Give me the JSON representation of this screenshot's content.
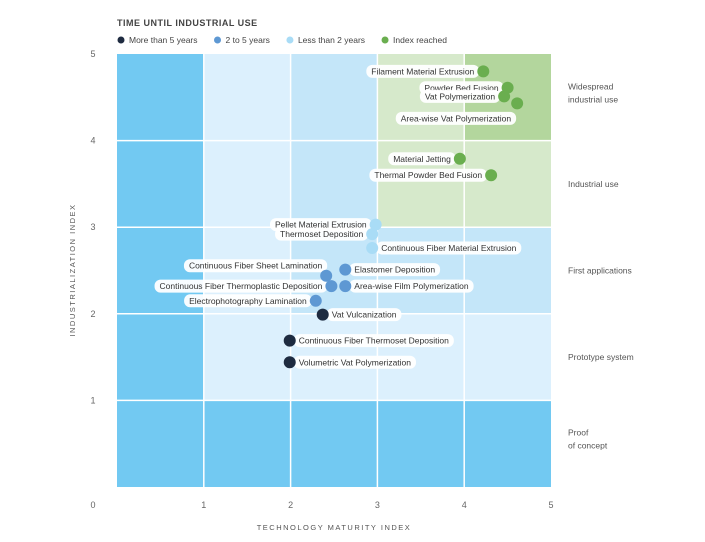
{
  "chart_data": {
    "type": "scatter",
    "title": "TIME UNTIL INDUSTRIAL USE",
    "xlabel": "TECHNOLOGY MATURITY INDEX",
    "ylabel": "INDUSTRIALIZATION INDEX",
    "xlim": [
      0,
      5
    ],
    "ylim": [
      0,
      5
    ],
    "xticks": [
      "0",
      "1",
      "2",
      "3",
      "4",
      "5"
    ],
    "yticks": [
      "0",
      "1",
      "2",
      "3",
      "4",
      "5"
    ],
    "grid": true,
    "legend_placement": "top-left",
    "legend": [
      {
        "key": "gt5",
        "name": "More than 5 years",
        "color": "#1e2b40"
      },
      {
        "key": "2to5",
        "name": "2 to 5 years",
        "color": "#5e98d3"
      },
      {
        "key": "lt2",
        "name": "Less than 2 years",
        "color": "#a9dcf6"
      },
      {
        "key": "reached",
        "name": "Index reached",
        "color": "#6aae4f"
      }
    ],
    "zone_colors": [
      "#72c9f2",
      "#dcf0fd",
      "#c4e6f9",
      "#d6e9cb",
      "#b3d69d"
    ],
    "y_categories": [
      "Proof of concept",
      "Prototype system",
      "First applications",
      "Industrial use",
      "Widespread industrial use"
    ],
    "points": [
      {
        "name": "Filament Material Extrusion",
        "x": 4.22,
        "y": 4.8,
        "group": "reached",
        "side": "left"
      },
      {
        "name": "Powder Bed Fusion",
        "x": 4.5,
        "y": 4.61,
        "group": "reached",
        "side": "left"
      },
      {
        "name": "Vat Polymerization",
        "x": 4.46,
        "y": 4.51,
        "group": "reached",
        "side": "left"
      },
      {
        "name": "Area-wise Vat Polymerization",
        "x": 4.61,
        "y": 4.43,
        "group": "reached",
        "side": "leftdown"
      },
      {
        "name": "Material Jetting",
        "x": 3.95,
        "y": 3.79,
        "group": "reached",
        "side": "left"
      },
      {
        "name": "Thermal Powder Bed Fusion",
        "x": 4.31,
        "y": 3.6,
        "group": "reached",
        "side": "left"
      },
      {
        "name": "Pellet Material Extrusion",
        "x": 2.98,
        "y": 3.03,
        "group": "lt2",
        "side": "left"
      },
      {
        "name": "Thermoset Deposition",
        "x": 2.94,
        "y": 2.92,
        "group": "lt2",
        "side": "left"
      },
      {
        "name": "Continuous Fiber Material Extrusion",
        "x": 2.94,
        "y": 2.76,
        "group": "lt2",
        "side": "right"
      },
      {
        "name": "Elastomer Deposition",
        "x": 2.63,
        "y": 2.51,
        "group": "2to5",
        "side": "right"
      },
      {
        "name": "Continuous Fiber Sheet Lamination",
        "x": 2.41,
        "y": 2.44,
        "group": "2to5",
        "side": "leftup"
      },
      {
        "name": "Continuous Fiber Thermoplastic Deposition",
        "x": 2.47,
        "y": 2.32,
        "group": "2to5",
        "side": "left"
      },
      {
        "name": "Area-wise Film Polymerization",
        "x": 2.63,
        "y": 2.32,
        "group": "2to5",
        "side": "right"
      },
      {
        "name": "Electrophotography Lamination",
        "x": 2.29,
        "y": 2.15,
        "group": "2to5",
        "side": "left"
      },
      {
        "name": "Vat Vulcanization",
        "x": 2.37,
        "y": 1.99,
        "group": "gt5",
        "side": "right"
      },
      {
        "name": "Continuous Fiber Thermoset Deposition",
        "x": 1.99,
        "y": 1.69,
        "group": "gt5",
        "side": "right"
      },
      {
        "name": "Volumetric Vat Polymerization",
        "x": 1.99,
        "y": 1.44,
        "group": "gt5",
        "side": "right"
      }
    ]
  }
}
